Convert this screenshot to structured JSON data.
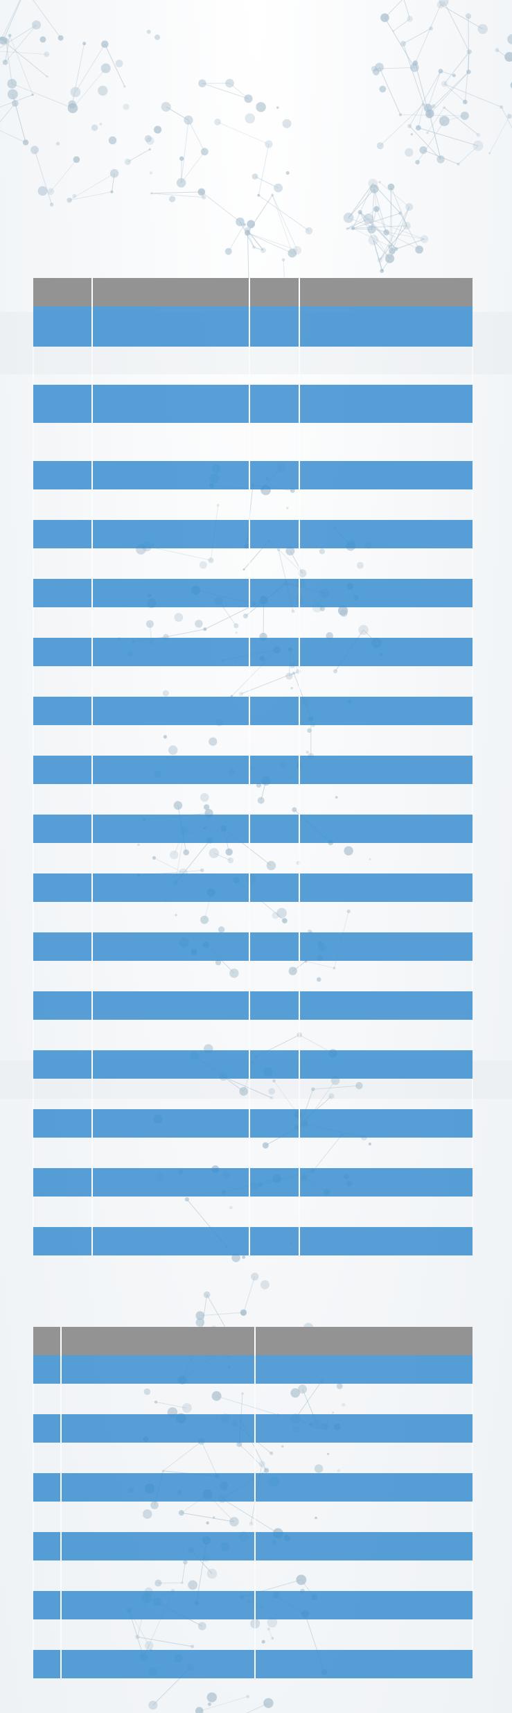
{
  "tables": [
    {
      "columns": [
        "",
        "",
        "",
        ""
      ],
      "rows": [
        [
          "",
          "",
          "",
          ""
        ],
        [
          "",
          "",
          "",
          ""
        ],
        [
          "",
          "",
          "",
          ""
        ],
        [
          "",
          "",
          "",
          ""
        ],
        [
          "",
          "",
          "",
          ""
        ],
        [
          "",
          "",
          "",
          ""
        ],
        [
          "",
          "",
          "",
          ""
        ],
        [
          "",
          "",
          "",
          ""
        ],
        [
          "",
          "",
          "",
          ""
        ],
        [
          "",
          "",
          "",
          ""
        ],
        [
          "",
          "",
          "",
          ""
        ],
        [
          "",
          "",
          "",
          ""
        ],
        [
          "",
          "",
          "",
          ""
        ],
        [
          "",
          "",
          "",
          ""
        ],
        [
          "",
          "",
          "",
          ""
        ],
        [
          "",
          "",
          "",
          ""
        ]
      ]
    },
    {
      "columns": [
        "",
        "",
        ""
      ],
      "rows": [
        [
          "",
          "",
          ""
        ],
        [
          "",
          "",
          ""
        ],
        [
          "",
          "",
          ""
        ],
        [
          "",
          "",
          ""
        ],
        [
          "",
          "",
          ""
        ],
        [
          "",
          "",
          ""
        ]
      ]
    }
  ],
  "colors": {
    "header": "#939393",
    "row": "#3a8ecf",
    "background": "#f4f6f8",
    "network": "#9fb6c6"
  }
}
